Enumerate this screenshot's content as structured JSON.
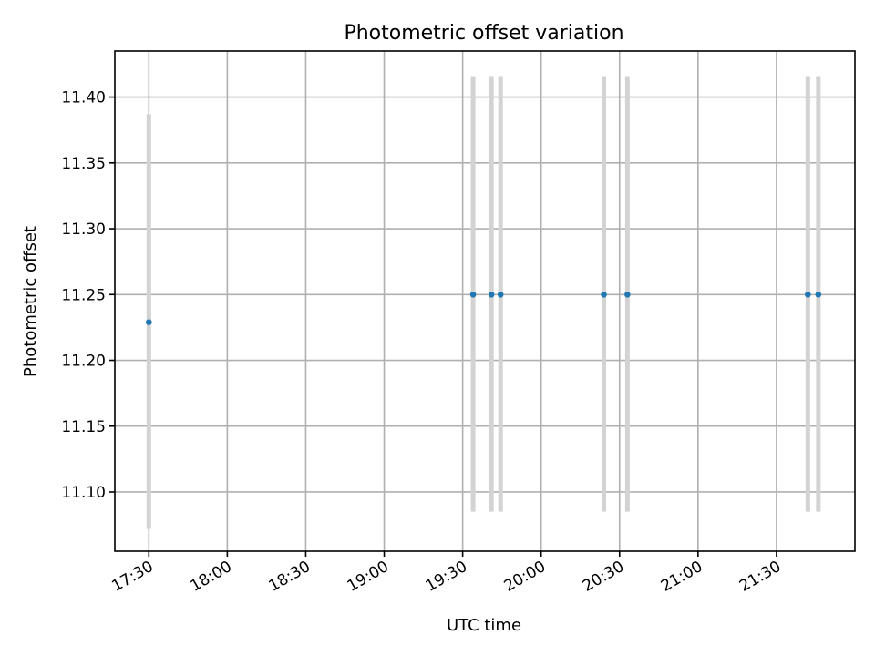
{
  "chart_data": {
    "type": "scatter",
    "title": "Photometric offset variation",
    "xlabel": "UTC time",
    "ylabel": "Photometric offset",
    "xlim": [
      "17:17",
      "22:00"
    ],
    "ylim": [
      11.055,
      11.435
    ],
    "xticks": [
      "17:30",
      "18:00",
      "18:30",
      "19:00",
      "19:30",
      "20:00",
      "20:30",
      "21:00",
      "21:30"
    ],
    "yticks": [
      "11.10",
      "11.15",
      "11.20",
      "11.25",
      "11.30",
      "11.35",
      "11.40"
    ],
    "grid": true,
    "colors": {
      "point": "#1f77b4",
      "errorbar": "#d3d3d3"
    },
    "points": [
      {
        "x": "17:30",
        "y": 11.229,
        "yerr_low": 11.072,
        "yerr_high": 11.387
      },
      {
        "x": "19:34",
        "y": 11.25,
        "yerr_low": 11.085,
        "yerr_high": 11.416
      },
      {
        "x": "19:41",
        "y": 11.25,
        "yerr_low": 11.085,
        "yerr_high": 11.416
      },
      {
        "x": "19:44.5",
        "y": 11.25,
        "yerr_low": 11.085,
        "yerr_high": 11.416
      },
      {
        "x": "20:24",
        "y": 11.25,
        "yerr_low": 11.085,
        "yerr_high": 11.416
      },
      {
        "x": "20:33",
        "y": 11.25,
        "yerr_low": 11.085,
        "yerr_high": 11.416
      },
      {
        "x": "21:42",
        "y": 11.25,
        "yerr_low": 11.085,
        "yerr_high": 11.416
      },
      {
        "x": "21:46",
        "y": 11.25,
        "yerr_low": 11.085,
        "yerr_high": 11.416
      }
    ]
  }
}
